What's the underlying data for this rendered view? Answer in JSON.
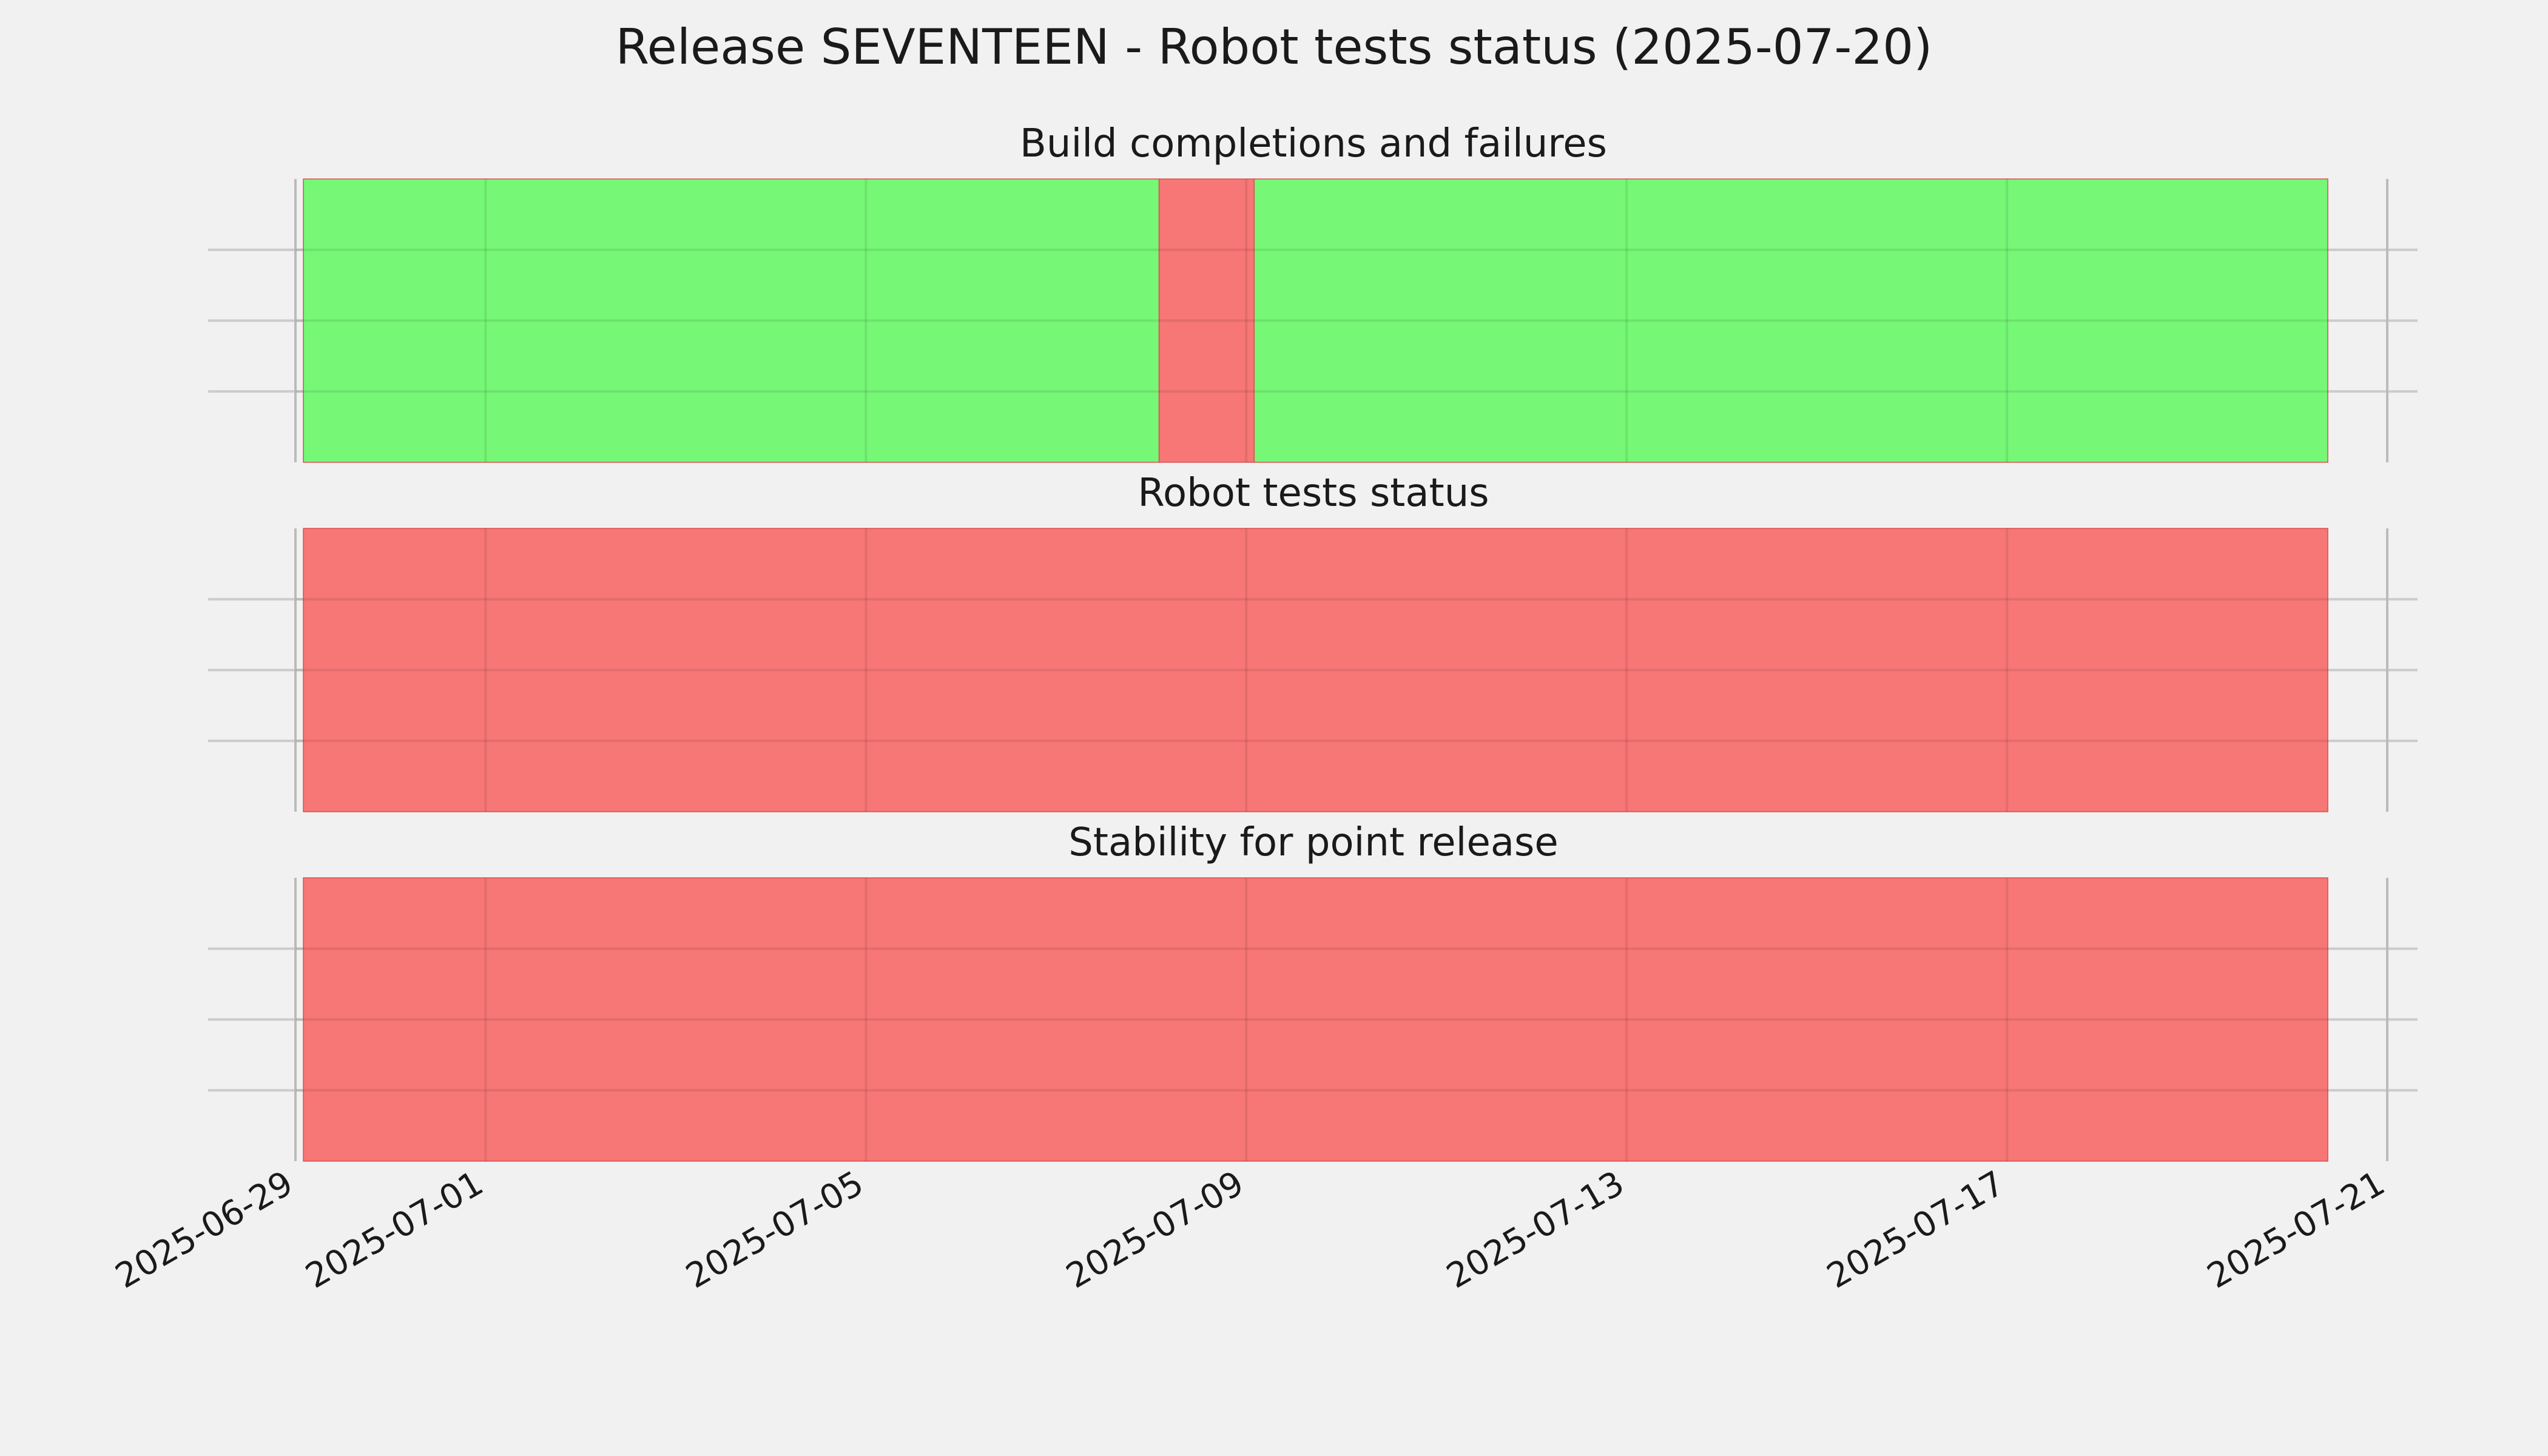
{
  "title": "Release SEVENTEEN - Robot tests status (2025-07-20)",
  "chart_data": {
    "type": "timeline",
    "title": "Release SEVENTEEN - Robot tests status (2025-07-20)",
    "xlim": [
      "2025-06-29",
      "2025-07-21"
    ],
    "x_ticks": [
      "2025-06-29",
      "2025-07-01",
      "2025-07-05",
      "2025-07-09",
      "2025-07-13",
      "2025-07-17",
      "2025-07-21"
    ],
    "grid": true,
    "legend": "none",
    "status_colors": {
      "pass": "#76f776",
      "fail": "#f77676"
    },
    "panels": [
      {
        "title": "Build completions and failures",
        "segments": [
          {
            "start": "2025-06-29T02:00",
            "end": "2025-07-08T02:00",
            "status": "pass"
          },
          {
            "start": "2025-07-08T02:00",
            "end": "2025-07-09T02:00",
            "status": "fail"
          },
          {
            "start": "2025-07-09T02:00",
            "end": "2025-07-20T09:00",
            "status": "pass"
          }
        ]
      },
      {
        "title": "Robot tests status",
        "segments": [
          {
            "start": "2025-06-29T02:00",
            "end": "2025-07-20T09:00",
            "status": "fail"
          }
        ]
      },
      {
        "title": "Stability for point release",
        "segments": [
          {
            "start": "2025-06-29T02:00",
            "end": "2025-07-20T09:00",
            "status": "fail"
          }
        ]
      }
    ]
  }
}
